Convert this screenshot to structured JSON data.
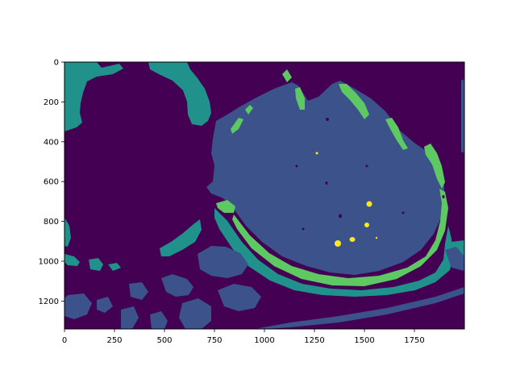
{
  "chart_data": {
    "type": "heatmap",
    "title": "",
    "xlabel": "",
    "ylabel": "",
    "xlim": [
      0,
      2000
    ],
    "ylim": [
      1340,
      0
    ],
    "xticks": [
      0,
      250,
      500,
      750,
      1000,
      1250,
      1500,
      1750
    ],
    "yticks": [
      0,
      200,
      400,
      600,
      800,
      1000,
      1200
    ],
    "xtick_labels": [
      "0",
      "250",
      "500",
      "750",
      "1000",
      "1250",
      "1500",
      "1750"
    ],
    "ytick_labels": [
      "0",
      "200",
      "400",
      "600",
      "800",
      "1000",
      "1200"
    ],
    "colormap": "viridis",
    "classes": [
      {
        "value": 0,
        "color": "#440154",
        "description": "background"
      },
      {
        "value": 1,
        "color": "#3b528b",
        "description": "main body and scattered regions"
      },
      {
        "value": 2,
        "color": "#21918c",
        "description": "outer band and left/top regions"
      },
      {
        "value": 3,
        "color": "#5ec962",
        "description": "curved ring and top fragments"
      },
      {
        "value": 4,
        "color": "#fde725",
        "description": "small spots"
      }
    ],
    "grid": false,
    "legend": "none"
  }
}
